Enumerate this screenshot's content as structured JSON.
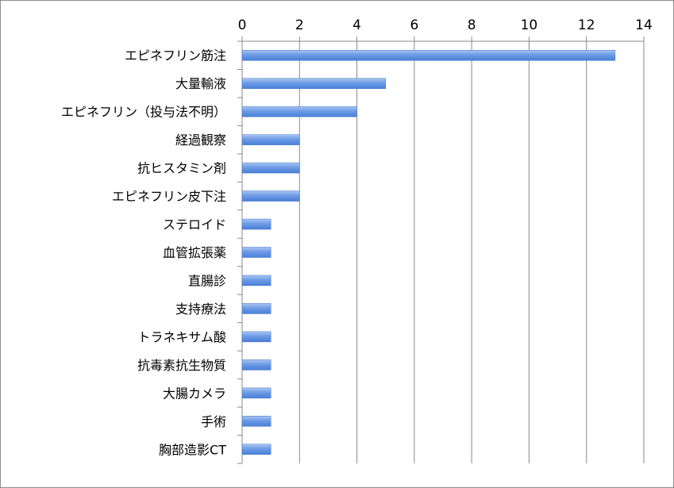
{
  "chart_data": {
    "type": "bar",
    "orientation": "horizontal",
    "title": "",
    "xlabel": "",
    "ylabel": "",
    "xlim": [
      0,
      14
    ],
    "xticks": [
      "0",
      "2",
      "4",
      "6",
      "8",
      "10",
      "12",
      "14"
    ],
    "x_axis_position": "top",
    "grid": true,
    "legend": "none",
    "bar_color": "#5b8ee0",
    "categories": [
      "エピネフリン筋注",
      "大量輸液",
      "エピネフリン（投与法不明）",
      "経過観察",
      "抗ヒスタミン剤",
      "エピネフリン皮下注",
      "ステロイド",
      "血管拡張薬",
      "直腸診",
      "支持療法",
      "トラネキサム酸",
      "抗毒素抗生物質",
      "大腸カメラ",
      "手術",
      "胸部造影CT"
    ],
    "values": [
      13,
      5,
      4,
      2,
      2,
      2,
      1,
      1,
      1,
      1,
      1,
      1,
      1,
      1,
      1
    ]
  }
}
